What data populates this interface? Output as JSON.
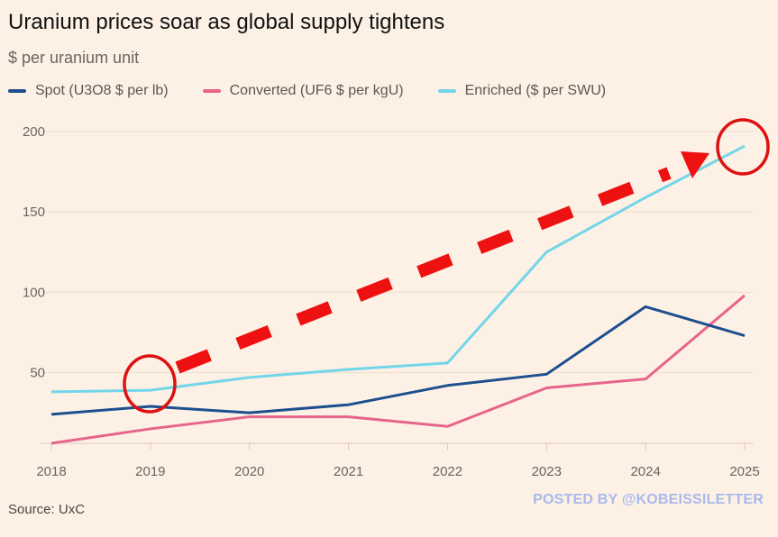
{
  "chart_data": {
    "type": "line",
    "title": "Uranium prices soar as global supply tightens",
    "subtitle": "$ per uranium unit",
    "x": [
      "2018",
      "2019",
      "2020",
      "2021",
      "2022",
      "2023",
      "2024",
      "2025"
    ],
    "y_ticks": [
      "50",
      "100",
      "150",
      "200"
    ],
    "ylim": [
      6,
      200
    ],
    "grid": true,
    "legend_position": "top-left",
    "series": [
      {
        "name": "Spot (U3O8 $ per lb)",
        "color": "#1d4f8f",
        "values": [
          24,
          29,
          25,
          30,
          42,
          49,
          91,
          73
        ]
      },
      {
        "name": "Converted (UF6 $ per kgU)",
        "color": "#e6658a",
        "values": [
          6,
          15,
          22.5,
          22.5,
          16.5,
          40.5,
          46,
          98
        ]
      },
      {
        "name": "Enriched ($ per SWU)",
        "color": "#72d6e8",
        "values": [
          38,
          39,
          47,
          52,
          56,
          125,
          159,
          191
        ]
      }
    ],
    "source": "Source: UxC",
    "annotations": {
      "arrow_color": "#ee1111",
      "circles_at": [
        "2019",
        "2025"
      ]
    }
  },
  "watermark": "POSTED BY @KOBEISSILETTER"
}
